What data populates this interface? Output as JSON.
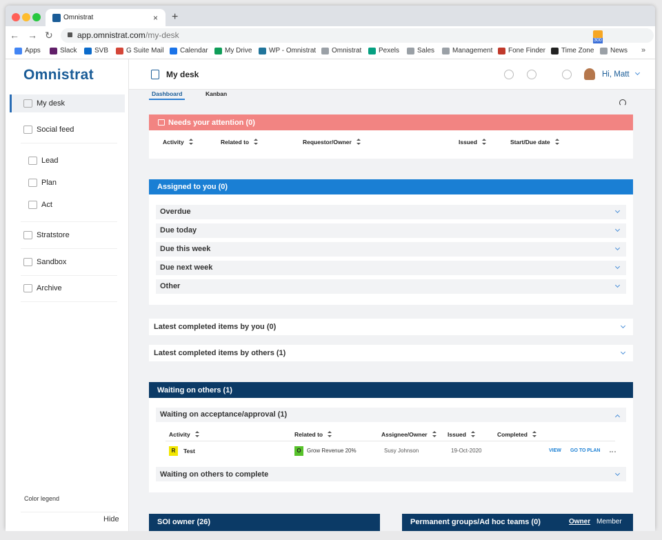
{
  "browser": {
    "tab_title": "Omnistrat",
    "url_host": "app.omnistrat.com",
    "url_path": "/my-desk",
    "extension_badge": "300",
    "bookmarks": [
      "Apps",
      "Slack",
      "SVB",
      "G Suite Mail",
      "Calendar",
      "My Drive",
      "WP - Omnistrat",
      "Omnistrat",
      "Pexels",
      "Sales",
      "Management",
      "Fone Finder",
      "Time Zone",
      "News"
    ]
  },
  "sidebar": {
    "logo": "Omnistrat",
    "nav": [
      "My desk",
      "Social feed",
      "Lead",
      "Plan",
      "Act",
      "Stratstore",
      "Sandbox",
      "Archive"
    ],
    "color_legend": "Color legend",
    "hide": "Hide"
  },
  "header": {
    "page_title": "My desk",
    "greeting": "Hi, Matt",
    "tabs": [
      "Dashboard",
      "Kanban"
    ]
  },
  "attention": {
    "title": "Needs your attention (0)",
    "columns": [
      "Activity",
      "Related to",
      "Requestor/Owner",
      "Issued",
      "Start/Due date"
    ]
  },
  "assigned": {
    "title": "Assigned to you (0)",
    "groups": [
      "Overdue",
      "Due today",
      "Due this week",
      "Due next week",
      "Other"
    ]
  },
  "latest": [
    "Latest completed items by you (0)",
    "Latest completed items by others (1)"
  ],
  "waiting": {
    "title": "Waiting on others (1)",
    "approval": "Waiting on acceptance/approval (1)",
    "columns": [
      "Activity",
      "Related to",
      "Assignee/Owner",
      "Issued",
      "Completed"
    ],
    "row": {
      "activity_badge": "R",
      "activity": "Test",
      "related_badge": "O",
      "related": "Grow Revenue 20%",
      "owner": "Susy Johnson",
      "issued": "19-Oct-2020",
      "actions": [
        "VIEW",
        "GO TO PLAN"
      ]
    },
    "to_complete": "Waiting on others to complete"
  },
  "bottom": {
    "soi": "SOI owner (26)",
    "groups": "Permanent groups/Ad hoc teams (0)",
    "toggles": [
      "Owner",
      "Member"
    ]
  }
}
